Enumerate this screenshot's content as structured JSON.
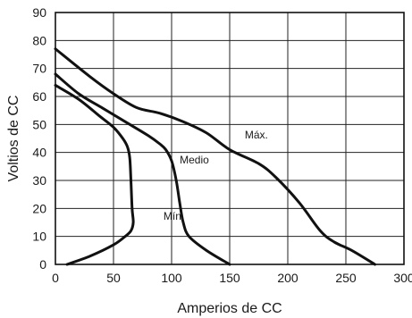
{
  "chart_data": {
    "type": "line",
    "title": "",
    "xlabel": "Amperios de CC",
    "ylabel": "Voltios de CC",
    "xlim": [
      0,
      300
    ],
    "ylim": [
      0,
      90
    ],
    "xticks": [
      "0",
      "50",
      "100",
      "150",
      "200",
      "250",
      "300"
    ],
    "yticks": [
      "0",
      "10",
      "20",
      "30",
      "40",
      "50",
      "60",
      "70",
      "80",
      "90"
    ],
    "grid": true,
    "legend": "none",
    "series": [
      {
        "name": "Mín.",
        "x": [
          10,
          30,
          50,
          60,
          65,
          67,
          66,
          65,
          64,
          62,
          58,
          50,
          38,
          20,
          0
        ],
        "y": [
          0,
          3,
          7,
          10,
          12,
          15,
          20,
          30,
          38,
          42,
          45,
          49,
          53,
          59,
          64
        ]
      },
      {
        "name": "Medio",
        "x": [
          150,
          130,
          115,
          110,
          107,
          104,
          100,
          95,
          90,
          80,
          60,
          40,
          20,
          0
        ],
        "y": [
          0,
          5,
          10,
          15,
          22,
          30,
          37,
          41,
          43,
          46,
          51,
          56,
          61,
          68
        ]
      },
      {
        "name": "Máx.",
        "x": [
          275,
          255,
          240,
          228,
          210,
          190,
          175,
          150,
          130,
          110,
          90,
          70,
          50,
          30,
          0
        ],
        "y": [
          0,
          5,
          8,
          12,
          22,
          31,
          36,
          41,
          47,
          51,
          54,
          56,
          61,
          67,
          77
        ]
      }
    ],
    "annotations": [
      {
        "text": "Mín.",
        "series": "Mín."
      },
      {
        "text": "Medio",
        "series": "Medio"
      },
      {
        "text": "Máx.",
        "series": "Máx."
      }
    ]
  }
}
